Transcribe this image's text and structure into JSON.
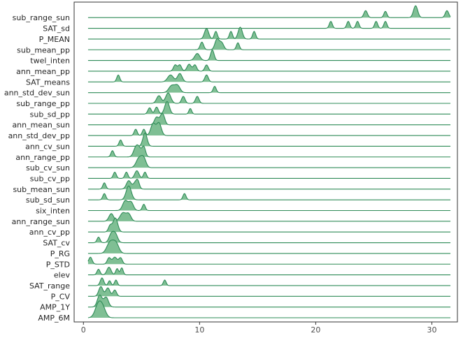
{
  "chart_data": {
    "type": "ridgeline",
    "fill_color": "#7fbf94",
    "line_color": "#2e8b57",
    "panel_border_color": "#333333",
    "xlim": [
      -0.8,
      32.2
    ],
    "x_ticks": [
      0,
      10,
      20,
      30
    ],
    "x_tick_labels": [
      "0",
      "10",
      "20",
      "30"
    ],
    "x_range": [
      0.4,
      31.6
    ],
    "grid": false,
    "legend": "none",
    "rows": [
      {
        "label": "AMP_6M",
        "peaks": [
          [
            1.3,
            1.0,
            0.28
          ],
          [
            1.7,
            0.55,
            0.25
          ]
        ]
      },
      {
        "label": "AMP_1Y",
        "peaks": [
          [
            1.4,
            0.85,
            0.2
          ],
          [
            1.95,
            0.7,
            0.2
          ]
        ]
      },
      {
        "label": "P_CV",
        "peaks": [
          [
            1.5,
            0.7,
            0.18
          ],
          [
            2.1,
            0.6,
            0.18
          ],
          [
            2.7,
            0.45,
            0.15
          ]
        ]
      },
      {
        "label": "SAT_range",
        "peaks": [
          [
            1.6,
            0.55,
            0.15
          ],
          [
            2.25,
            0.35,
            0.12
          ],
          [
            2.8,
            0.4,
            0.12
          ],
          [
            7.0,
            0.4,
            0.12
          ]
        ]
      },
      {
        "label": "elev",
        "peaks": [
          [
            1.3,
            0.4,
            0.13
          ],
          [
            2.2,
            0.55,
            0.18
          ],
          [
            2.9,
            0.45,
            0.12
          ],
          [
            3.3,
            0.5,
            0.12
          ]
        ]
      },
      {
        "label": "P_STD",
        "peaks": [
          [
            0.6,
            0.5,
            0.15
          ],
          [
            2.2,
            0.45,
            0.15
          ],
          [
            2.7,
            0.5,
            0.2
          ],
          [
            3.2,
            0.45,
            0.15
          ]
        ]
      },
      {
        "label": "P_RG",
        "peaks": [
          [
            2.3,
            0.8,
            0.28
          ],
          [
            2.8,
            0.7,
            0.25
          ]
        ]
      },
      {
        "label": "SAT_cv",
        "peaks": [
          [
            1.3,
            0.4,
            0.13
          ],
          [
            2.4,
            0.6,
            0.2
          ],
          [
            2.75,
            0.6,
            0.2
          ]
        ]
      },
      {
        "label": "ann_cv_pp",
        "peaks": [
          [
            2.3,
            0.45,
            0.15
          ],
          [
            2.75,
            1.0,
            0.2
          ]
        ]
      },
      {
        "label": "ann_range_sun",
        "peaks": [
          [
            2.4,
            0.55,
            0.2
          ],
          [
            3.4,
            0.6,
            0.25
          ],
          [
            3.9,
            0.5,
            0.2
          ]
        ]
      },
      {
        "label": "six_inten",
        "peaks": [
          [
            3.6,
            0.7,
            0.22
          ],
          [
            4.1,
            0.6,
            0.2
          ],
          [
            5.2,
            0.45,
            0.13
          ]
        ]
      },
      {
        "label": "sub_sd_sun",
        "peaks": [
          [
            1.8,
            0.45,
            0.13
          ],
          [
            3.9,
            1.0,
            0.22
          ],
          [
            8.7,
            0.45,
            0.13
          ]
        ]
      },
      {
        "label": "sub_mean_sun",
        "peaks": [
          [
            1.8,
            0.45,
            0.13
          ],
          [
            3.9,
            0.6,
            0.2
          ],
          [
            4.5,
            0.5,
            0.2
          ],
          [
            4.7,
            0.35,
            0.13
          ]
        ]
      },
      {
        "label": "sub_cv_pp",
        "peaks": [
          [
            2.7,
            0.45,
            0.13
          ],
          [
            3.7,
            0.45,
            0.13
          ],
          [
            4.6,
            0.55,
            0.18
          ],
          [
            5.3,
            0.45,
            0.13
          ]
        ]
      },
      {
        "label": "sub_cv_sun",
        "peaks": [
          [
            4.8,
            0.7,
            0.25
          ],
          [
            5.2,
            0.6,
            0.2
          ]
        ]
      },
      {
        "label": "ann_range_pp",
        "peaks": [
          [
            2.5,
            0.45,
            0.13
          ],
          [
            4.5,
            0.6,
            0.2
          ],
          [
            4.8,
            0.55,
            0.2
          ],
          [
            5.2,
            0.7,
            0.15
          ]
        ]
      },
      {
        "label": "ann_cv_sun",
        "peaks": [
          [
            3.2,
            0.45,
            0.13
          ],
          [
            5.3,
            0.95,
            0.18
          ]
        ]
      },
      {
        "label": "ann_std_dev_pp",
        "peaks": [
          [
            4.5,
            0.45,
            0.13
          ],
          [
            5.2,
            0.45,
            0.13
          ],
          [
            6.0,
            0.85,
            0.2
          ],
          [
            6.5,
            0.9,
            0.2
          ]
        ]
      },
      {
        "label": "ann_mean_sun",
        "peaks": [
          [
            6.3,
            0.55,
            0.18
          ],
          [
            6.7,
            0.5,
            0.15
          ],
          [
            6.9,
            0.5,
            0.15
          ]
        ]
      },
      {
        "label": "sub_sd_pp",
        "peaks": [
          [
            5.7,
            0.45,
            0.15
          ],
          [
            6.3,
            0.5,
            0.15
          ],
          [
            7.2,
            0.9,
            0.2
          ],
          [
            9.2,
            0.4,
            0.12
          ]
        ]
      },
      {
        "label": "sub_range_pp",
        "peaks": [
          [
            6.5,
            0.55,
            0.2
          ],
          [
            7.3,
            0.75,
            0.22
          ],
          [
            8.6,
            0.5,
            0.15
          ],
          [
            9.8,
            0.5,
            0.15
          ]
        ]
      },
      {
        "label": "ann_std_dev_sun",
        "peaks": [
          [
            7.6,
            0.5,
            0.25
          ],
          [
            8.1,
            0.5,
            0.22
          ],
          [
            11.3,
            0.45,
            0.13
          ]
        ]
      },
      {
        "label": "SAT_means",
        "peaks": [
          [
            3.0,
            0.5,
            0.13
          ],
          [
            7.5,
            0.5,
            0.25
          ],
          [
            8.3,
            0.6,
            0.2
          ],
          [
            10.6,
            0.5,
            0.15
          ]
        ]
      },
      {
        "label": "ann_mean_pp",
        "peaks": [
          [
            7.9,
            0.45,
            0.15
          ],
          [
            8.3,
            0.45,
            0.15
          ],
          [
            9.1,
            0.5,
            0.18
          ],
          [
            9.6,
            0.45,
            0.15
          ],
          [
            10.6,
            0.45,
            0.15
          ]
        ]
      },
      {
        "label": "twel_inten",
        "peaks": [
          [
            9.8,
            0.5,
            0.22
          ],
          [
            11.1,
            0.75,
            0.15
          ]
        ]
      },
      {
        "label": "sub_mean_pp",
        "peaks": [
          [
            10.2,
            0.55,
            0.15
          ],
          [
            11.5,
            0.75,
            0.18
          ],
          [
            11.9,
            0.5,
            0.18
          ],
          [
            13.3,
            0.5,
            0.13
          ]
        ]
      },
      {
        "label": "P_MEAN",
        "peaks": [
          [
            10.6,
            0.75,
            0.18
          ],
          [
            11.4,
            0.55,
            0.13
          ],
          [
            12.7,
            0.55,
            0.13
          ],
          [
            13.5,
            0.85,
            0.18
          ],
          [
            14.7,
            0.55,
            0.13
          ]
        ]
      },
      {
        "label": "SAT_sd",
        "peaks": [
          [
            21.3,
            0.5,
            0.13
          ],
          [
            22.8,
            0.5,
            0.13
          ],
          [
            23.6,
            0.5,
            0.13
          ],
          [
            25.2,
            0.5,
            0.13
          ],
          [
            26.0,
            0.5,
            0.13
          ]
        ]
      },
      {
        "label": "sub_range_sun",
        "peaks": [
          [
            24.3,
            0.5,
            0.15
          ],
          [
            26.0,
            0.45,
            0.13
          ],
          [
            28.6,
            0.85,
            0.18
          ],
          [
            31.3,
            0.5,
            0.15
          ]
        ]
      }
    ]
  }
}
